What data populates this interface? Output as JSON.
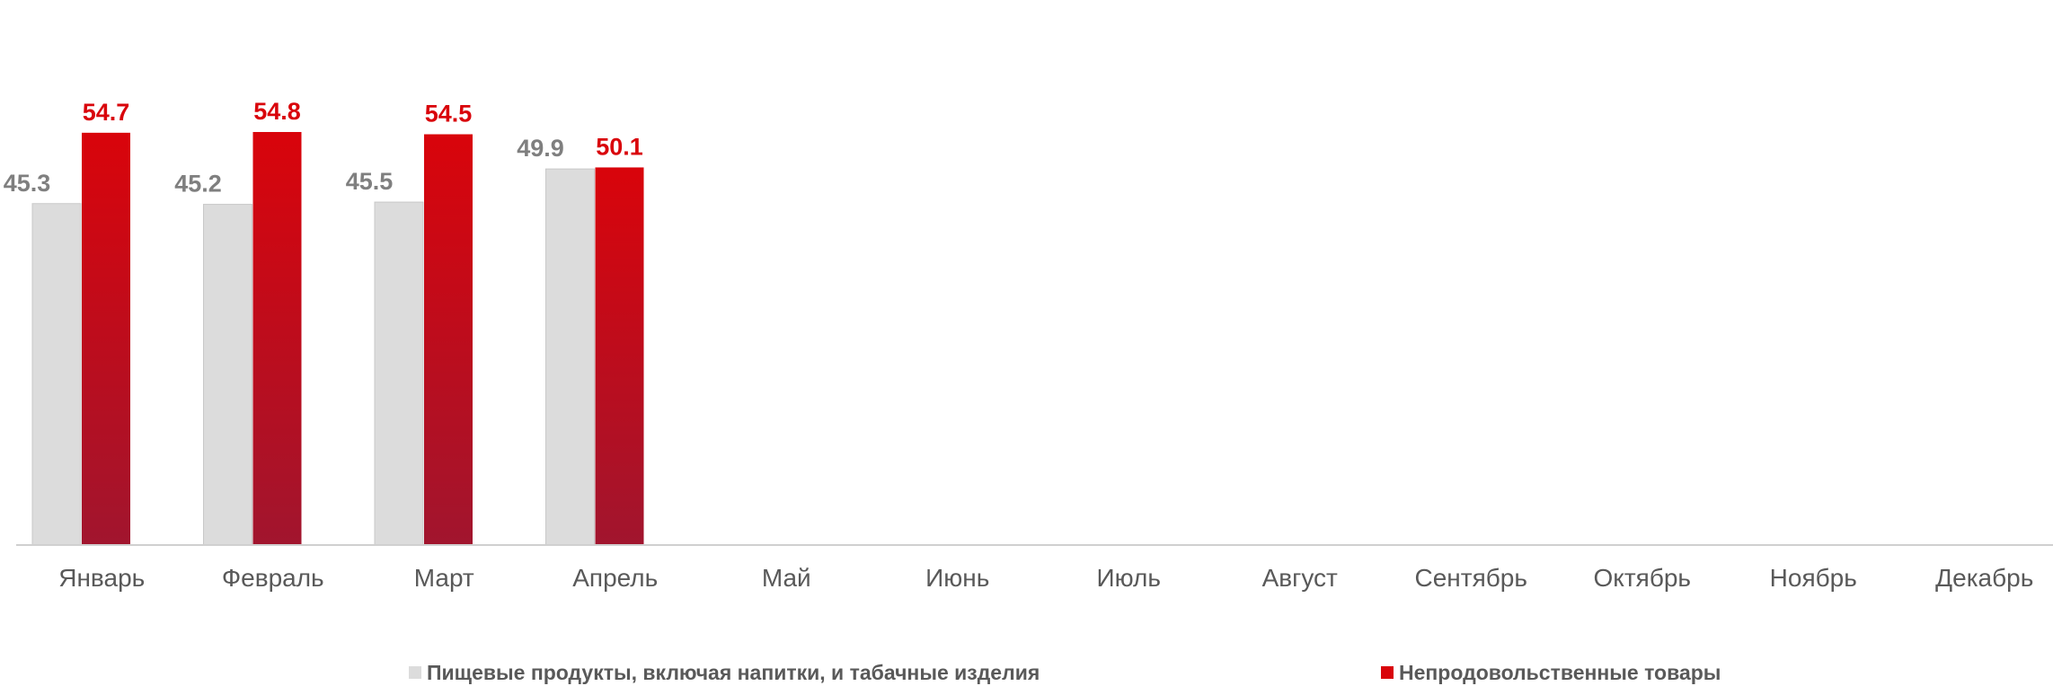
{
  "chart_data": {
    "type": "bar",
    "categories": [
      "Январь",
      "Февраль",
      "Март",
      "Апрель",
      "Май",
      "Июнь",
      "Июль",
      "Август",
      "Сентябрь",
      "Октябрь",
      "Ноябрь",
      "Декабрь"
    ],
    "series": [
      {
        "name": "Пищевые продукты, включая напитки, и табачные изделия",
        "values": [
          45.3,
          45.2,
          45.5,
          49.9,
          null,
          null,
          null,
          null,
          null,
          null,
          null,
          null
        ],
        "color": "#dcdcdc",
        "label_color": "#7f7f7f"
      },
      {
        "name": "Непродовольственные товары",
        "values": [
          54.7,
          54.8,
          54.5,
          50.1,
          null,
          null,
          null,
          null,
          null,
          null,
          null,
          null
        ],
        "color": "#d9040b",
        "label_color": "#d9040b"
      }
    ],
    "ylim": [
      0,
      55
    ],
    "data_labels": true,
    "legend": "bottom",
    "grid": false
  }
}
